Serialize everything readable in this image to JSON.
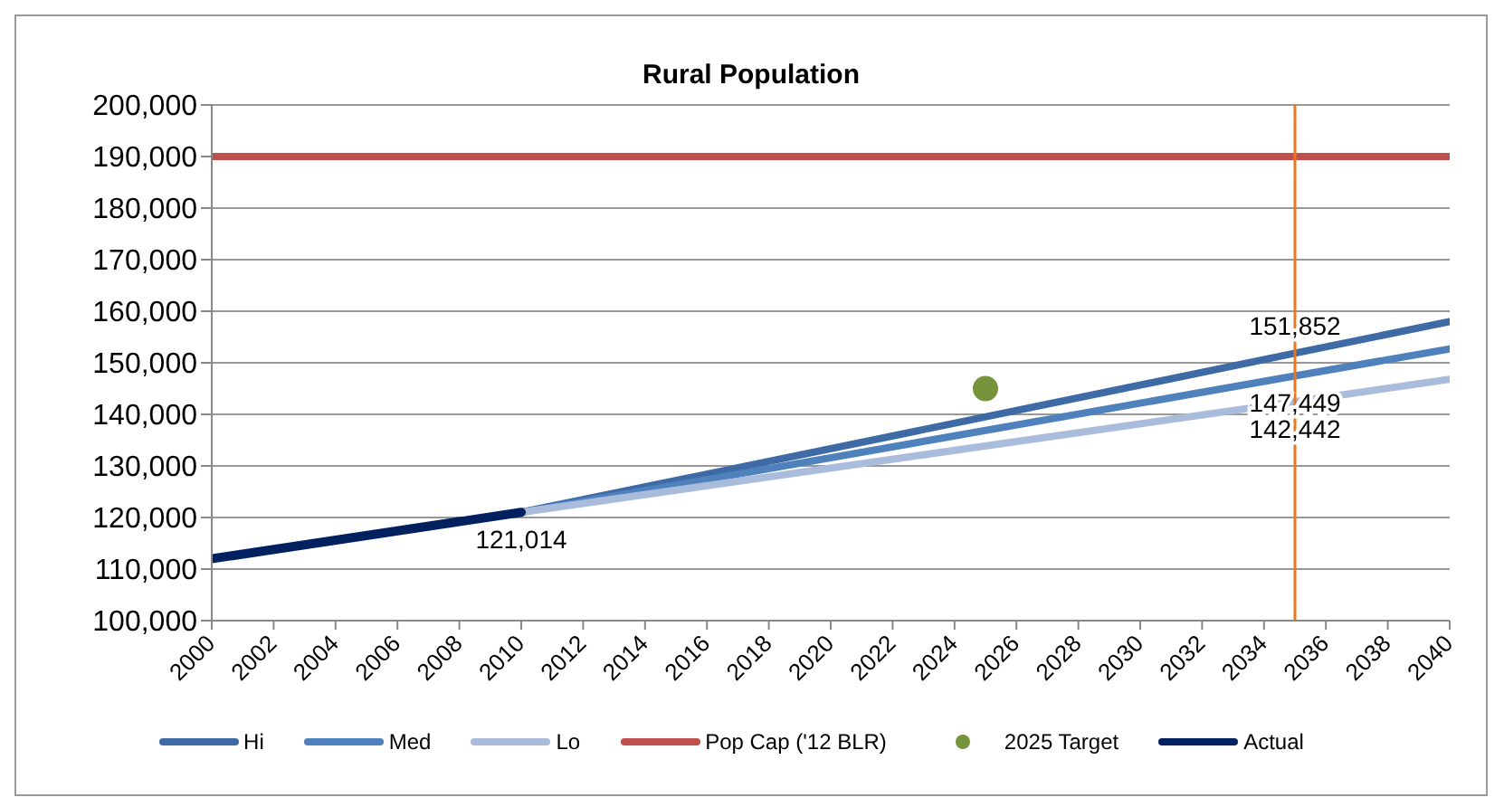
{
  "chart_data": {
    "type": "line",
    "title": "Rural Population",
    "xlim": [
      2000,
      2040
    ],
    "xticks": [
      2000,
      2002,
      2004,
      2006,
      2008,
      2010,
      2012,
      2014,
      2016,
      2018,
      2020,
      2022,
      2024,
      2026,
      2028,
      2030,
      2032,
      2034,
      2036,
      2038,
      2040
    ],
    "ylim": [
      100000,
      200000
    ],
    "yticks": [
      {
        "value": 100000,
        "label": "100,000"
      },
      {
        "value": 110000,
        "label": "110,000"
      },
      {
        "value": 120000,
        "label": "120,000"
      },
      {
        "value": 130000,
        "label": "130,000"
      },
      {
        "value": 140000,
        "label": "140,000"
      },
      {
        "value": 150000,
        "label": "150,000"
      },
      {
        "value": 160000,
        "label": "160,000"
      },
      {
        "value": 170000,
        "label": "170,000"
      },
      {
        "value": 180000,
        "label": "180,000"
      },
      {
        "value": 190000,
        "label": "190,000"
      },
      {
        "value": 200000,
        "label": "200,000"
      }
    ],
    "grid": "y",
    "legend": "bottom",
    "marker": "none",
    "line_style": "solid",
    "ref_lines": [
      {
        "axis": "x",
        "value": 2035,
        "color": "#e87722"
      }
    ],
    "series": [
      {
        "name": "Hi",
        "color": "#3e6aa5",
        "x": [
          2010,
          2035,
          2040
        ],
        "values": [
          121014,
          151852,
          158000
        ],
        "value_labels": [
          null,
          "151,852",
          null
        ]
      },
      {
        "name": "Med",
        "color": "#4f81bd",
        "x": [
          2010,
          2035,
          2040
        ],
        "values": [
          121014,
          147449,
          152700
        ],
        "value_labels": [
          null,
          "147,449",
          null
        ]
      },
      {
        "name": "Lo",
        "color": "#a9bcdc",
        "x": [
          2010,
          2035,
          2040
        ],
        "values": [
          121014,
          142442,
          146800
        ],
        "value_labels": [
          null,
          "142,442",
          null
        ]
      },
      {
        "name": "Pop Cap ('12 BLR)",
        "color": "#c0504d",
        "x": [
          2000,
          2040
        ],
        "values": [
          190000,
          190000
        ]
      },
      {
        "name": "2025 Target",
        "type": "scatter",
        "marker": "circle",
        "color": "#77933c",
        "x": [
          2025
        ],
        "values": [
          145000
        ]
      },
      {
        "name": "Actual",
        "color": "#002060",
        "x": [
          2000,
          2010
        ],
        "values": [
          112000,
          121014
        ],
        "value_labels": [
          null,
          "121,014"
        ]
      }
    ]
  }
}
